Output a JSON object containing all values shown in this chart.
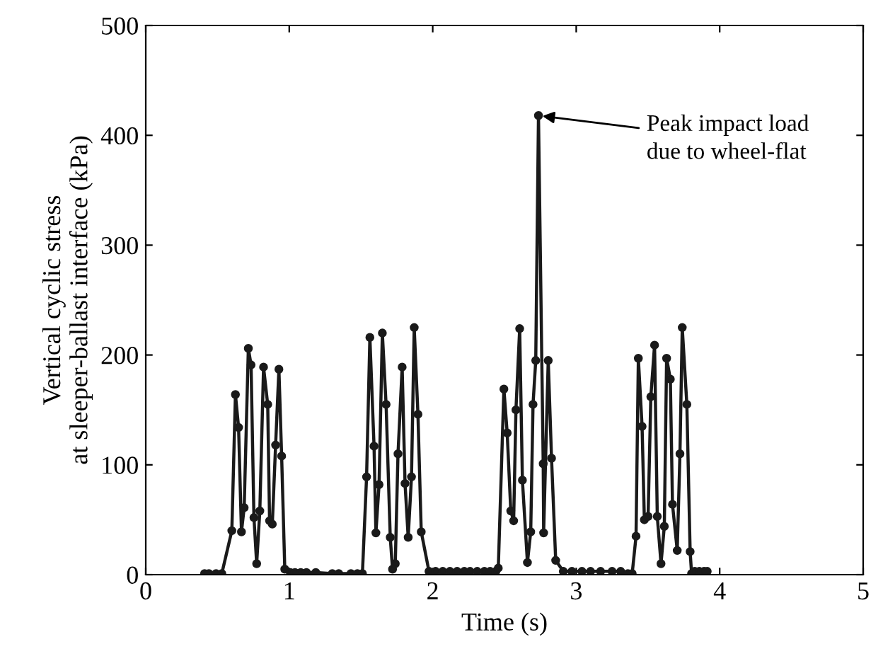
{
  "chart_data": {
    "type": "line",
    "xlabel": "Time (s)",
    "ylabel": "Vertical cyclic stress\nat sleeper-ballast interface (kPa)",
    "xlim": [
      0,
      5
    ],
    "ylim": [
      0,
      500
    ],
    "xticks": [
      0,
      1,
      2,
      3,
      4,
      5
    ],
    "yticks": [
      0,
      100,
      200,
      300,
      400,
      500
    ],
    "grid": false,
    "legend": false,
    "marker": "circle",
    "line_style": "solid",
    "series": [
      {
        "color": "#1a1a1a",
        "x": [
          0.41,
          0.44,
          0.49,
          0.53,
          0.6,
          0.625,
          0.647,
          0.667,
          0.686,
          0.715,
          0.734,
          0.754,
          0.773,
          0.795,
          0.821,
          0.85,
          0.863,
          0.882,
          0.905,
          0.928,
          0.947,
          0.969,
          1.008,
          1.04,
          1.08,
          1.12,
          1.185,
          1.3,
          1.345,
          1.43,
          1.475,
          1.51,
          1.539,
          1.562,
          1.591,
          1.604,
          1.626,
          1.649,
          1.675,
          1.704,
          1.72,
          1.739,
          1.758,
          1.787,
          1.807,
          1.829,
          1.852,
          1.871,
          1.897,
          1.92,
          1.974,
          2.02,
          2.07,
          2.12,
          2.17,
          2.22,
          2.26,
          2.31,
          2.36,
          2.4,
          2.44,
          2.457,
          2.496,
          2.519,
          2.544,
          2.564,
          2.58,
          2.606,
          2.625,
          2.66,
          2.683,
          2.699,
          2.718,
          2.737,
          2.77,
          2.773,
          2.805,
          2.828,
          2.857,
          2.91,
          2.97,
          3.04,
          3.1,
          3.17,
          3.25,
          3.31,
          3.36,
          3.39,
          3.417,
          3.433,
          3.459,
          3.475,
          3.501,
          3.52,
          3.546,
          3.565,
          3.591,
          3.614,
          3.63,
          3.656,
          3.671,
          3.704,
          3.723,
          3.739,
          3.771,
          3.794,
          3.804,
          3.826,
          3.858,
          3.891,
          3.913
        ],
        "values": [
          1,
          1,
          1,
          1,
          40,
          164,
          134,
          39,
          61,
          206,
          191,
          52,
          10,
          58,
          189,
          155,
          49,
          46,
          118,
          187,
          108,
          5,
          2,
          2,
          2,
          2,
          2,
          1,
          1,
          1,
          1,
          1,
          89,
          216,
          117,
          38,
          82,
          220,
          155,
          34,
          5,
          10,
          110,
          189,
          83,
          34,
          89,
          225,
          146,
          39,
          3,
          3,
          3,
          3,
          3,
          3,
          3,
          3,
          3,
          3,
          3,
          6,
          169,
          129,
          58,
          49,
          150,
          224,
          86,
          11,
          39,
          155,
          195,
          418,
          101,
          38,
          195,
          106,
          13,
          3,
          3,
          3,
          3,
          3,
          3,
          3,
          1,
          1,
          35,
          197,
          135,
          50,
          53,
          162,
          209,
          53,
          10,
          44,
          197,
          178,
          64,
          22,
          110,
          225,
          155,
          21,
          1,
          3,
          3,
          3,
          3
        ]
      }
    ],
    "annotations": [
      {
        "text": "Peak impact load\ndue to wheel-flat",
        "x": 2.737,
        "y": 418
      }
    ]
  }
}
